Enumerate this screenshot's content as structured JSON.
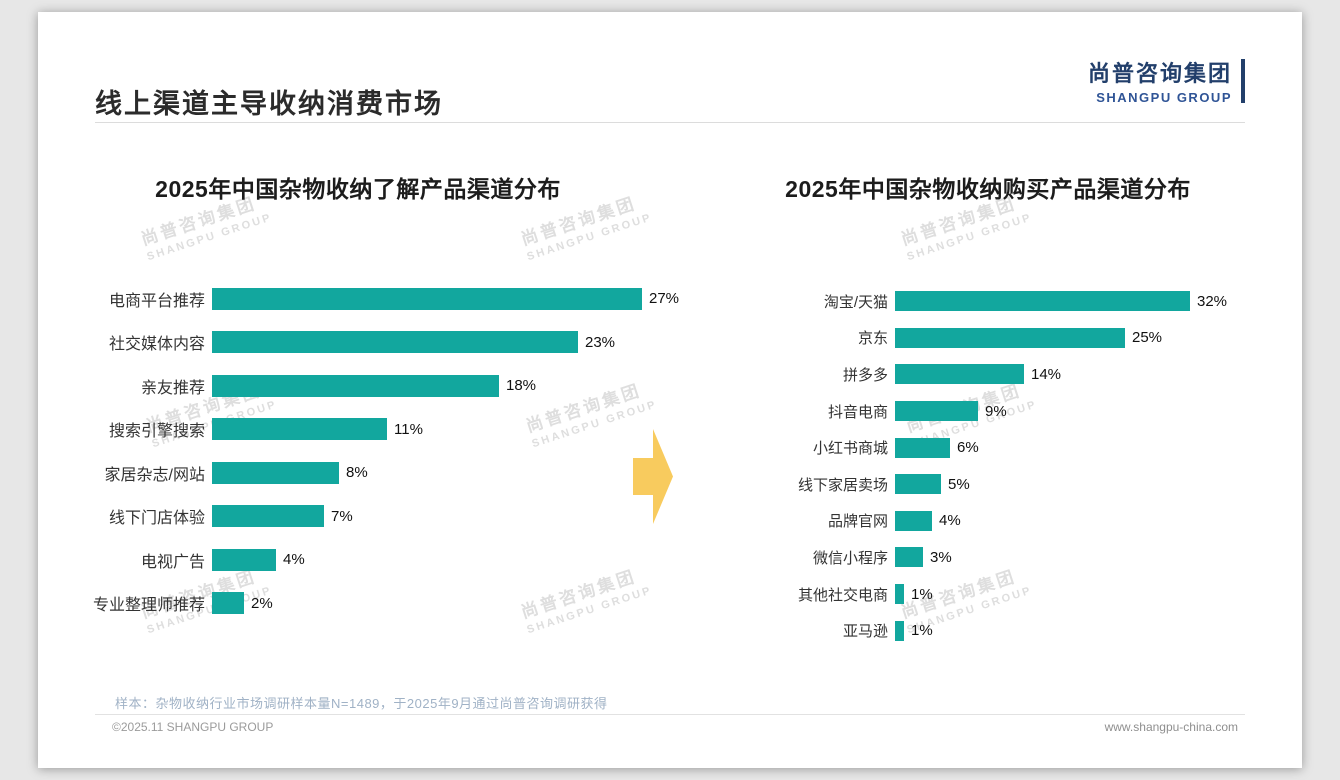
{
  "slide": {
    "title": "线上渠道主导收纳消费市场",
    "logo": {
      "cn": "尚普咨询集团",
      "en": "SHANGPU GROUP"
    },
    "watermark": {
      "cn": "尚普咨询集团",
      "en": "SHANGPU GROUP"
    },
    "footnote": "样本：杂物收纳行业市场调研样本量N=1489，于2025年9月通过尚普咨询调研获得",
    "footer_left": "©2025.11 SHANGPU GROUP",
    "footer_right": "www.shangpu-china.com"
  },
  "colors": {
    "bar": "#12A79E",
    "arrow": "#F8CB5E",
    "logo_blue": "#223F6B",
    "logo_blue2": "#2F5496",
    "footnote": "#A0B2C6"
  },
  "chart_data": [
    {
      "type": "bar",
      "orientation": "horizontal",
      "title": "2025年中国杂物收纳了解产品渠道分布",
      "categories": [
        "电商平台推荐",
        "社交媒体内容",
        "亲友推荐",
        "搜索引擎搜索",
        "家居杂志/网站",
        "线下门店体验",
        "电视广告",
        "专业整理师推荐"
      ],
      "values": [
        27,
        23,
        18,
        11,
        8,
        7,
        4,
        2
      ],
      "unit": "%",
      "axis_max": 28,
      "grid": false,
      "legend": false
    },
    {
      "type": "bar",
      "orientation": "horizontal",
      "title": "2025年中国杂物收纳购买产品渠道分布",
      "categories": [
        "淘宝/天猫",
        "京东",
        "拼多多",
        "抖音电商",
        "小红书商城",
        "线下家居卖场",
        "品牌官网",
        "微信小程序",
        "其他社交电商",
        "亚马逊"
      ],
      "values": [
        32,
        25,
        14,
        9,
        6,
        5,
        4,
        3,
        1,
        1
      ],
      "unit": "%",
      "axis_max": 33,
      "grid": false,
      "legend": false
    }
  ]
}
